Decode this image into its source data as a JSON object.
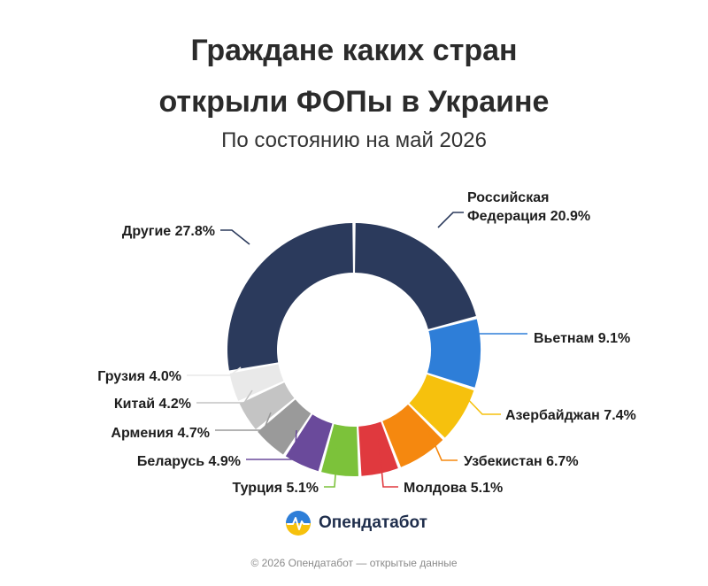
{
  "title_line1": "Граждане каких стран",
  "title_line2": "открыли ФОПы в Украине",
  "subtitle": "По состоянию на май 2026",
  "brand": {
    "name": "Опендатабот"
  },
  "footer": "© 2026 Опендатабот — открытые данные",
  "chart_data": {
    "type": "pie",
    "donut": true,
    "slices": [
      {
        "label": "Российская Федерация 20.9%",
        "label_lines": [
          "Российская",
          "Федерация 20.9%"
        ],
        "value": 20.9,
        "color": "#2b3a5c"
      },
      {
        "label": "Вьетнам 9.1%",
        "label_lines": [
          "Вьетнам 9.1%"
        ],
        "value": 9.1,
        "color": "#2e7ed8"
      },
      {
        "label": "Азербайджан 7.4%",
        "label_lines": [
          "Азербайджан 7.4%"
        ],
        "value": 7.4,
        "color": "#f6c10d"
      },
      {
        "label": "Узбекистан 6.7%",
        "label_lines": [
          "Узбекистан 6.7%"
        ],
        "value": 6.7,
        "color": "#f5880f"
      },
      {
        "label": "Молдова 5.1%",
        "label_lines": [
          "Молдова 5.1%"
        ],
        "value": 5.1,
        "color": "#e0393e"
      },
      {
        "label": "Турция 5.1%",
        "label_lines": [
          "Турция 5.1%"
        ],
        "value": 5.1,
        "color": "#7cc23a"
      },
      {
        "label": "Беларусь 4.9%",
        "label_lines": [
          "Беларусь 4.9%"
        ],
        "value": 4.9,
        "color": "#6a4a9b"
      },
      {
        "label": "Армения 4.7%",
        "label_lines": [
          "Армения 4.7%"
        ],
        "value": 4.7,
        "color": "#9a9a9a"
      },
      {
        "label": "Китай 4.2%",
        "label_lines": [
          "Китай 4.2%"
        ],
        "value": 4.2,
        "color": "#c4c4c4"
      },
      {
        "label": "Грузия 4.0%",
        "label_lines": [
          "Грузия 4.0%"
        ],
        "value": 4.0,
        "color": "#e9e9e9"
      },
      {
        "label": "Другие 27.8%",
        "label_lines": [
          "Другие 27.8%"
        ],
        "value": 27.8,
        "color": "#2b3a5c"
      }
    ]
  }
}
